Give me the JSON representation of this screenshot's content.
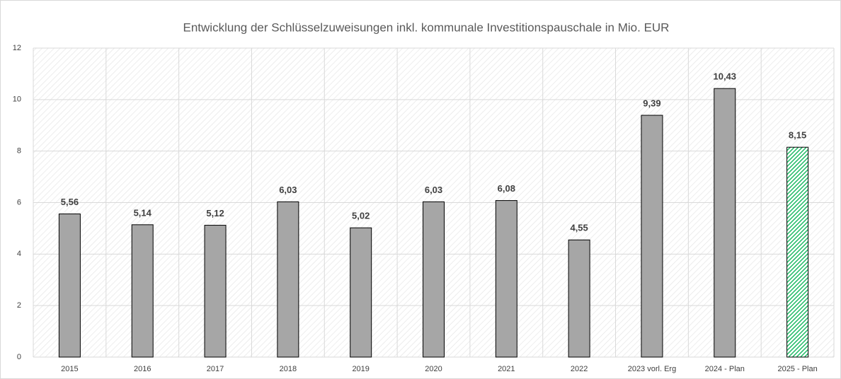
{
  "chart_data": {
    "type": "bar",
    "title": "Entwicklung der Schlüsselzuweisungen inkl. kommunale Investitionspauschale in Mio. EUR",
    "categories": [
      "2015",
      "2016",
      "2017",
      "2018",
      "2019",
      "2020",
      "2021",
      "2022",
      "2023 vorl. Erg",
      "2024 - Plan",
      "2025 - Plan"
    ],
    "values": [
      5.56,
      5.14,
      5.12,
      6.03,
      5.02,
      6.03,
      6.08,
      4.55,
      9.39,
      10.43,
      8.15
    ],
    "value_labels": [
      "5,56",
      "5,14",
      "5,12",
      "6,03",
      "5,02",
      "6,03",
      "6,08",
      "4,55",
      "9,39",
      "10,43",
      "8,15"
    ],
    "colors": [
      "#a6a6a6",
      "#a6a6a6",
      "#a6a6a6",
      "#a6a6a6",
      "#a6a6a6",
      "#a6a6a6",
      "#a6a6a6",
      "#a6a6a6",
      "#a6a6a6",
      "#a6a6a6",
      "#00b050"
    ],
    "patterns": [
      "solid",
      "solid",
      "solid",
      "solid",
      "solid",
      "solid",
      "solid",
      "solid",
      "solid",
      "solid",
      "hatch"
    ],
    "ylim": [
      0,
      12
    ],
    "yticks": [
      0,
      2,
      4,
      6,
      8,
      10,
      12
    ],
    "grid": true
  }
}
